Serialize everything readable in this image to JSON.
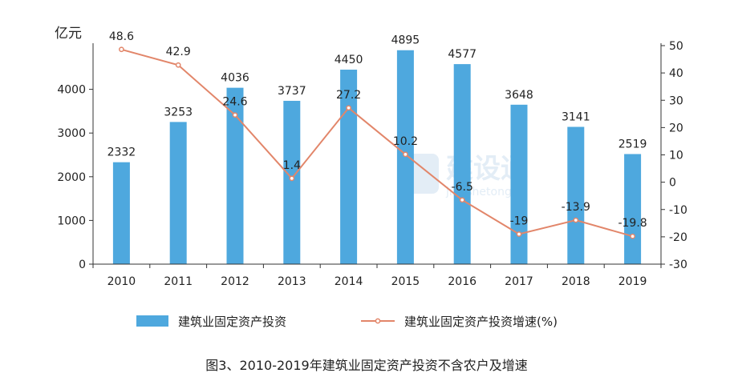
{
  "chart_data": {
    "type": "bar+line",
    "categories": [
      "2010",
      "2011",
      "2012",
      "2013",
      "2014",
      "2015",
      "2016",
      "2017",
      "2018",
      "2019"
    ],
    "series": [
      {
        "name": "建筑业固定资产投资",
        "type": "bar",
        "axis": "left",
        "values": [
          2332,
          3253,
          4036,
          3737,
          4450,
          4895,
          4577,
          3648,
          3141,
          2519
        ],
        "labels": [
          "2332",
          "3253",
          "4036",
          "3737",
          "4450",
          "4895",
          "4577",
          "3648",
          "3141",
          "2519"
        ],
        "color": "#4ea8de"
      },
      {
        "name": "建筑业固定资产投资增速(%)",
        "type": "line",
        "axis": "right",
        "values": [
          48.6,
          42.9,
          24.6,
          1.4,
          27.2,
          10.2,
          -6.5,
          -19,
          -13.9,
          -19.8
        ],
        "labels": [
          "48.6",
          "42.9",
          "24.6",
          "1.4",
          "27.2",
          "10.2",
          "-6.5",
          "-19",
          "-13.9",
          "-19.8"
        ],
        "color": "#e2866a"
      }
    ],
    "y_left": {
      "unit_label": "亿元",
      "ylim": [
        0,
        5000
      ],
      "ticks": [
        0,
        1000,
        2000,
        3000,
        4000
      ],
      "tick_labels": [
        "0",
        "1000",
        "2000",
        "3000",
        "4000"
      ]
    },
    "y_right": {
      "ylim": [
        -30,
        50
      ],
      "ticks": [
        -30,
        -20,
        -10,
        0,
        10,
        20,
        30,
        40,
        50
      ],
      "tick_labels": [
        "-30",
        "-20",
        "-10",
        "0",
        "10",
        "20",
        "30",
        "40",
        "50"
      ]
    },
    "caption": "图3、2010-2019年建筑业固定资产投资不含农户及增速",
    "legend_position": "bottom",
    "grid": false
  },
  "watermark": {
    "main": "建设通",
    "sub": "jianshetong"
  }
}
